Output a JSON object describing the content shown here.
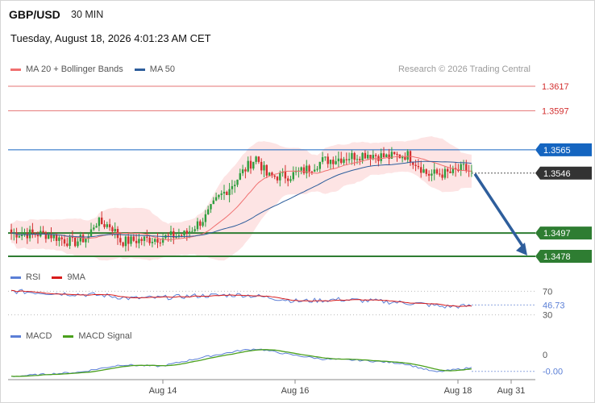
{
  "header": {
    "symbol": "GBP/USD",
    "timeframe": "30 MIN",
    "datetime": "Tuesday, August 18, 2026 4:01:23 AM CET",
    "credit": "Research © 2026 Trading Central"
  },
  "legend": {
    "ma20_label": "MA 20 + Bollinger Bands",
    "ma20_color": "#f07070",
    "ma50_label": "MA 50",
    "ma50_color": "#2e5e9c",
    "rsi_label": "RSI",
    "rsi_color": "#5b7fd6",
    "rsi_ma_label": "9MA",
    "rsi_ma_color": "#d81b1b",
    "macd_label": "MACD",
    "macd_color": "#5b7fd6",
    "macd_signal_label": "MACD Signal",
    "macd_signal_color": "#4aa01c"
  },
  "colors": {
    "candle_up": "#2e9e3e",
    "candle_down": "#d32f2f",
    "band_fill": "#fde4e4",
    "resistance": "#e57373",
    "pivot": "#1565c0",
    "support": "#2e7d32",
    "current": "#333333",
    "arrow": "#2e5e9c"
  },
  "chart_data": [
    {
      "type": "candlestick",
      "title": "GBP/USD",
      "ylim": [
        1.347,
        1.3632
      ],
      "x_ticks": [
        "Aug 14",
        "Aug 16",
        "Aug 18",
        "Aug 31"
      ],
      "levels": [
        {
          "value": 1.3617,
          "label": "1.3617",
          "role": "resistance"
        },
        {
          "value": 1.3597,
          "label": "1.3597",
          "role": "resistance"
        },
        {
          "value": 1.3565,
          "label": "1.3565",
          "role": "pivot"
        },
        {
          "value": 1.3546,
          "label": "1.3546",
          "role": "current"
        },
        {
          "value": 1.3497,
          "label": "1.3497",
          "role": "support"
        },
        {
          "value": 1.3478,
          "label": "1.3478",
          "role": "support"
        }
      ],
      "projection": {
        "from": 1.3546,
        "to": 1.3478
      },
      "series": [
        {
          "name": "MA 20 + Bollinger Bands"
        },
        {
          "name": "MA 50"
        }
      ]
    },
    {
      "type": "line",
      "title": "RSI",
      "ylim": [
        20,
        80
      ],
      "y_ticks": [
        70,
        30
      ],
      "last_value": "46.73",
      "series": [
        {
          "name": "RSI"
        },
        {
          "name": "9MA"
        }
      ]
    },
    {
      "type": "line",
      "title": "MACD",
      "ylim": [
        -0.0015,
        0.0015
      ],
      "y_ticks": [
        "0"
      ],
      "last_value": "-0.00",
      "series": [
        {
          "name": "MACD"
        },
        {
          "name": "MACD Signal"
        }
      ]
    }
  ]
}
